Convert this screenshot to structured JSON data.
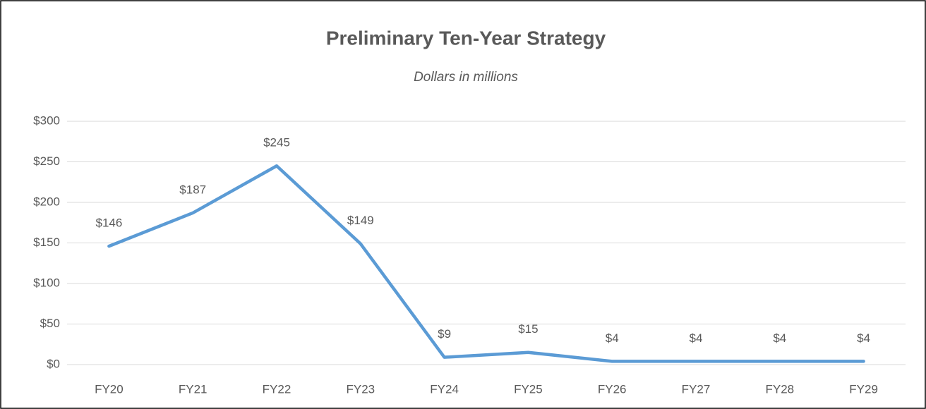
{
  "chart_data": {
    "type": "line",
    "title": "Preliminary Ten-Year Strategy",
    "subtitle": "Dollars in millions",
    "categories": [
      "FY20",
      "FY21",
      "FY22",
      "FY23",
      "FY24",
      "FY25",
      "FY26",
      "FY27",
      "FY28",
      "FY29"
    ],
    "values": [
      146,
      187,
      245,
      149,
      9,
      15,
      4,
      4,
      4,
      4
    ],
    "value_labels": [
      "$146",
      "$187",
      "$245",
      "$149",
      "$9",
      "$15",
      "$4",
      "$4",
      "$4",
      "$4"
    ],
    "color": "#5b9bd5",
    "ylim": [
      0,
      300
    ],
    "yticks": [
      {
        "value": 0,
        "label": "$0"
      },
      {
        "value": 50,
        "label": "$50"
      },
      {
        "value": 100,
        "label": "$100"
      },
      {
        "value": 150,
        "label": "$150"
      },
      {
        "value": 200,
        "label": "$200"
      },
      {
        "value": 250,
        "label": "$250"
      },
      {
        "value": 300,
        "label": "$300"
      }
    ],
    "grid": true
  }
}
